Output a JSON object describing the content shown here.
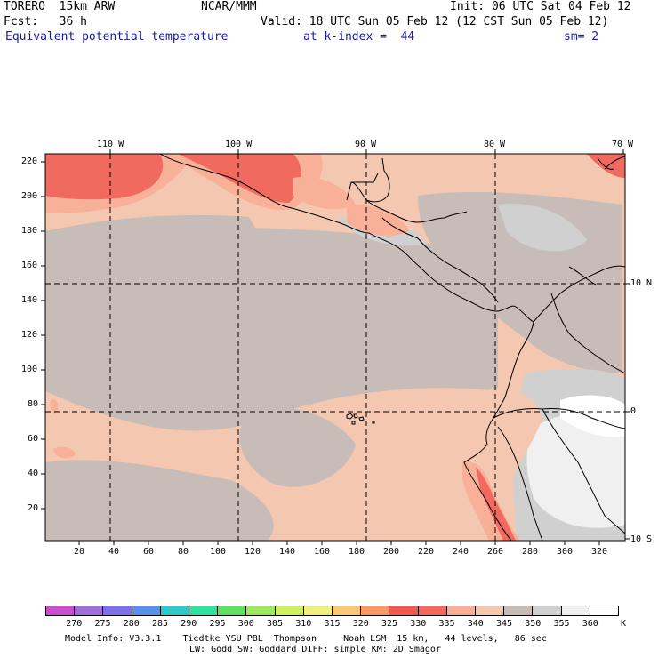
{
  "header": {
    "model": "TORERO  15km ARW",
    "org": "NCAR/MMM",
    "init": "Init: 06 UTC Sat 04 Feb 12",
    "fcst": "Fcst:   36 h",
    "valid": "Valid: 18 UTC Sun 05 Feb 12 (12 CST Sun 05 Feb 12)",
    "field": "Equivalent potential temperature",
    "level": "at k-index =  44",
    "smooth": "sm= 2",
    "accent_color": "#1a1aa8"
  },
  "axes": {
    "x_ticks": [
      "20",
      "40",
      "60",
      "80",
      "100",
      "120",
      "140",
      "160",
      "180",
      "200",
      "220",
      "240",
      "260",
      "280",
      "300",
      "320"
    ],
    "y_ticks": [
      "220",
      "200",
      "180",
      "160",
      "140",
      "120",
      "100",
      "80",
      "60",
      "40",
      "20"
    ],
    "lon_labels": [
      "110 W",
      "100 W",
      "90 W",
      "80 W",
      "70 W"
    ],
    "lat_labels": [
      "10 N",
      "0",
      "10 S"
    ]
  },
  "colorbar": {
    "labels": [
      "270",
      "275",
      "280",
      "285",
      "290",
      "295",
      "300",
      "305",
      "310",
      "315",
      "320",
      "325",
      "330",
      "335",
      "340",
      "345",
      "350",
      "355",
      "360"
    ],
    "unit": "K",
    "colors": [
      "#c850c8",
      "#a070d8",
      "#8070e8",
      "#5a90e8",
      "#30c8c8",
      "#30e0a0",
      "#60e060",
      "#a0e860",
      "#d0f060",
      "#f0f080",
      "#f8c878",
      "#f89a68",
      "#f05a50",
      "#f06a60",
      "#f8b098",
      "#f4c8b0",
      "#c8bcb8",
      "#d0d0d0",
      "#f0f0f0",
      "#ffffff"
    ]
  },
  "footer": {
    "line1": "Model Info: V3.3.1    Tiedtke YSU PBL  Thompson     Noah LSM  15 km,   44 levels,   86 sec",
    "line2": "LW: Godd SW: Goddard DIFF: simple KM: 2D Smagor"
  }
}
